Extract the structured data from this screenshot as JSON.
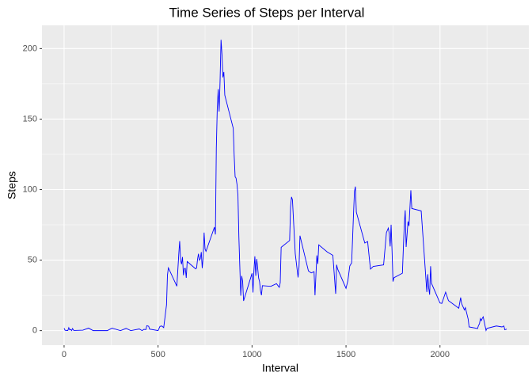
{
  "chart_data": {
    "type": "line",
    "title": "Time Series of Steps per Interval",
    "x_label": "Interval",
    "y_label": "Steps",
    "x": [
      0,
      5,
      10,
      15,
      20,
      25,
      30,
      35,
      40,
      45,
      50,
      55,
      100,
      130,
      155,
      200,
      230,
      255,
      300,
      330,
      355,
      400,
      415,
      425,
      435,
      440,
      450,
      455,
      500,
      510,
      520,
      530,
      545,
      550,
      555,
      600,
      610,
      615,
      620,
      625,
      630,
      635,
      640,
      645,
      650,
      655,
      700,
      705,
      710,
      715,
      720,
      725,
      730,
      735,
      740,
      745,
      750,
      755,
      800,
      805,
      810,
      815,
      820,
      825,
      830,
      835,
      840,
      845,
      850,
      855,
      900,
      905,
      910,
      915,
      920,
      925,
      930,
      935,
      940,
      945,
      950,
      955,
      1000,
      1005,
      1010,
      1015,
      1020,
      1025,
      1030,
      1035,
      1040,
      1045,
      1050,
      1055,
      1100,
      1130,
      1145,
      1150,
      1155,
      1200,
      1205,
      1210,
      1215,
      1230,
      1245,
      1250,
      1255,
      1300,
      1315,
      1330,
      1335,
      1340,
      1345,
      1350,
      1355,
      1400,
      1430,
      1445,
      1450,
      1455,
      1500,
      1510,
      1520,
      1530,
      1535,
      1540,
      1545,
      1550,
      1555,
      1600,
      1615,
      1630,
      1645,
      1700,
      1715,
      1725,
      1730,
      1735,
      1740,
      1745,
      1750,
      1755,
      1800,
      1805,
      1810,
      1815,
      1820,
      1830,
      1835,
      1845,
      1850,
      1900,
      1930,
      1935,
      1940,
      1945,
      1950,
      1955,
      2000,
      2010,
      2030,
      2045,
      2100,
      2110,
      2115,
      2130,
      2135,
      2150,
      2155,
      2200,
      2205,
      2210,
      2215,
      2220,
      2225,
      2230,
      2245,
      2250,
      2300,
      2330,
      2340,
      2345,
      2355
    ],
    "series": [
      {
        "name": "Steps",
        "color": "#0000ff",
        "values": [
          1.7,
          0.3,
          0.1,
          0.2,
          0.1,
          2.1,
          0.5,
          0.9,
          0,
          1.5,
          0.3,
          0.1,
          0.3,
          1.8,
          0,
          0,
          0,
          1.8,
          0,
          1.6,
          0,
          1.2,
          0,
          0.9,
          0.7,
          3.5,
          3.1,
          1.1,
          0,
          3,
          3.3,
          2.1,
          18.3,
          39.5,
          44.5,
          31.5,
          53.8,
          63.5,
          50,
          47.1,
          52.2,
          39.3,
          44,
          44.2,
          37.4,
          49,
          43.8,
          44.4,
          50.5,
          54.5,
          49.9,
          51,
          55.7,
          44.3,
          52.3,
          69.5,
          57.8,
          56.2,
          73.4,
          68.2,
          129.4,
          157.5,
          171.2,
          155.4,
          177.3,
          206.2,
          195.9,
          179.6,
          183.4,
          167,
          143.5,
          124,
          109.1,
          108.1,
          103.7,
          95.9,
          66.2,
          45.2,
          24.8,
          38.8,
          35,
          21.1,
          40.6,
          27,
          42.4,
          52.7,
          38.9,
          50.8,
          44.3,
          37.4,
          34.7,
          28.3,
          25.1,
          31.9,
          31.4,
          33.3,
          30.7,
          34,
          59.1,
          63.9,
          87.7,
          94.8,
          92.8,
          54.5,
          37.7,
          45.1,
          67.3,
          42.3,
          40.9,
          41.8,
          25.1,
          39.5,
          53.3,
          47.3,
          60.8,
          55.8,
          53.4,
          26.1,
          46.7,
          43.8,
          30,
          35.5,
          45.8,
          48.1,
          65.3,
          82.9,
          98.7,
          102.1,
          84,
          62.1,
          63.2,
          43.6,
          45.5,
          46.6,
          69.5,
          72.7,
          68.9,
          59.7,
          75.1,
          56.5,
          34.8,
          37.5,
          40.7,
          58,
          74.7,
          85.3,
          59.3,
          77.4,
          74.2,
          99.5,
          86.6,
          84.9,
          27.4,
          40,
          30.2,
          25.5,
          45.7,
          33.5,
          19.6,
          19.3,
          27.3,
          21.3,
          15.9,
          23.5,
          19.2,
          14.7,
          16.3,
          8.1,
          2.6,
          1.5,
          3.7,
          4.8,
          8.5,
          7.1,
          8.7,
          9.8,
          0.1,
          1.6,
          3.3,
          2.6,
          3.3,
          0.6,
          1.1
        ]
      }
    ],
    "xlim": [
      -117.75,
      2472.75
    ],
    "ylim": [
      -10.31,
      216.48
    ],
    "xticks": [
      0,
      500,
      1000,
      1500,
      2000
    ],
    "yticks": [
      0,
      50,
      100,
      150,
      200
    ],
    "xminor": [
      250,
      750,
      1250,
      1750,
      2250
    ],
    "yminor": [
      25,
      75,
      125,
      175
    ],
    "grid": true,
    "background": "#ebebeb"
  }
}
